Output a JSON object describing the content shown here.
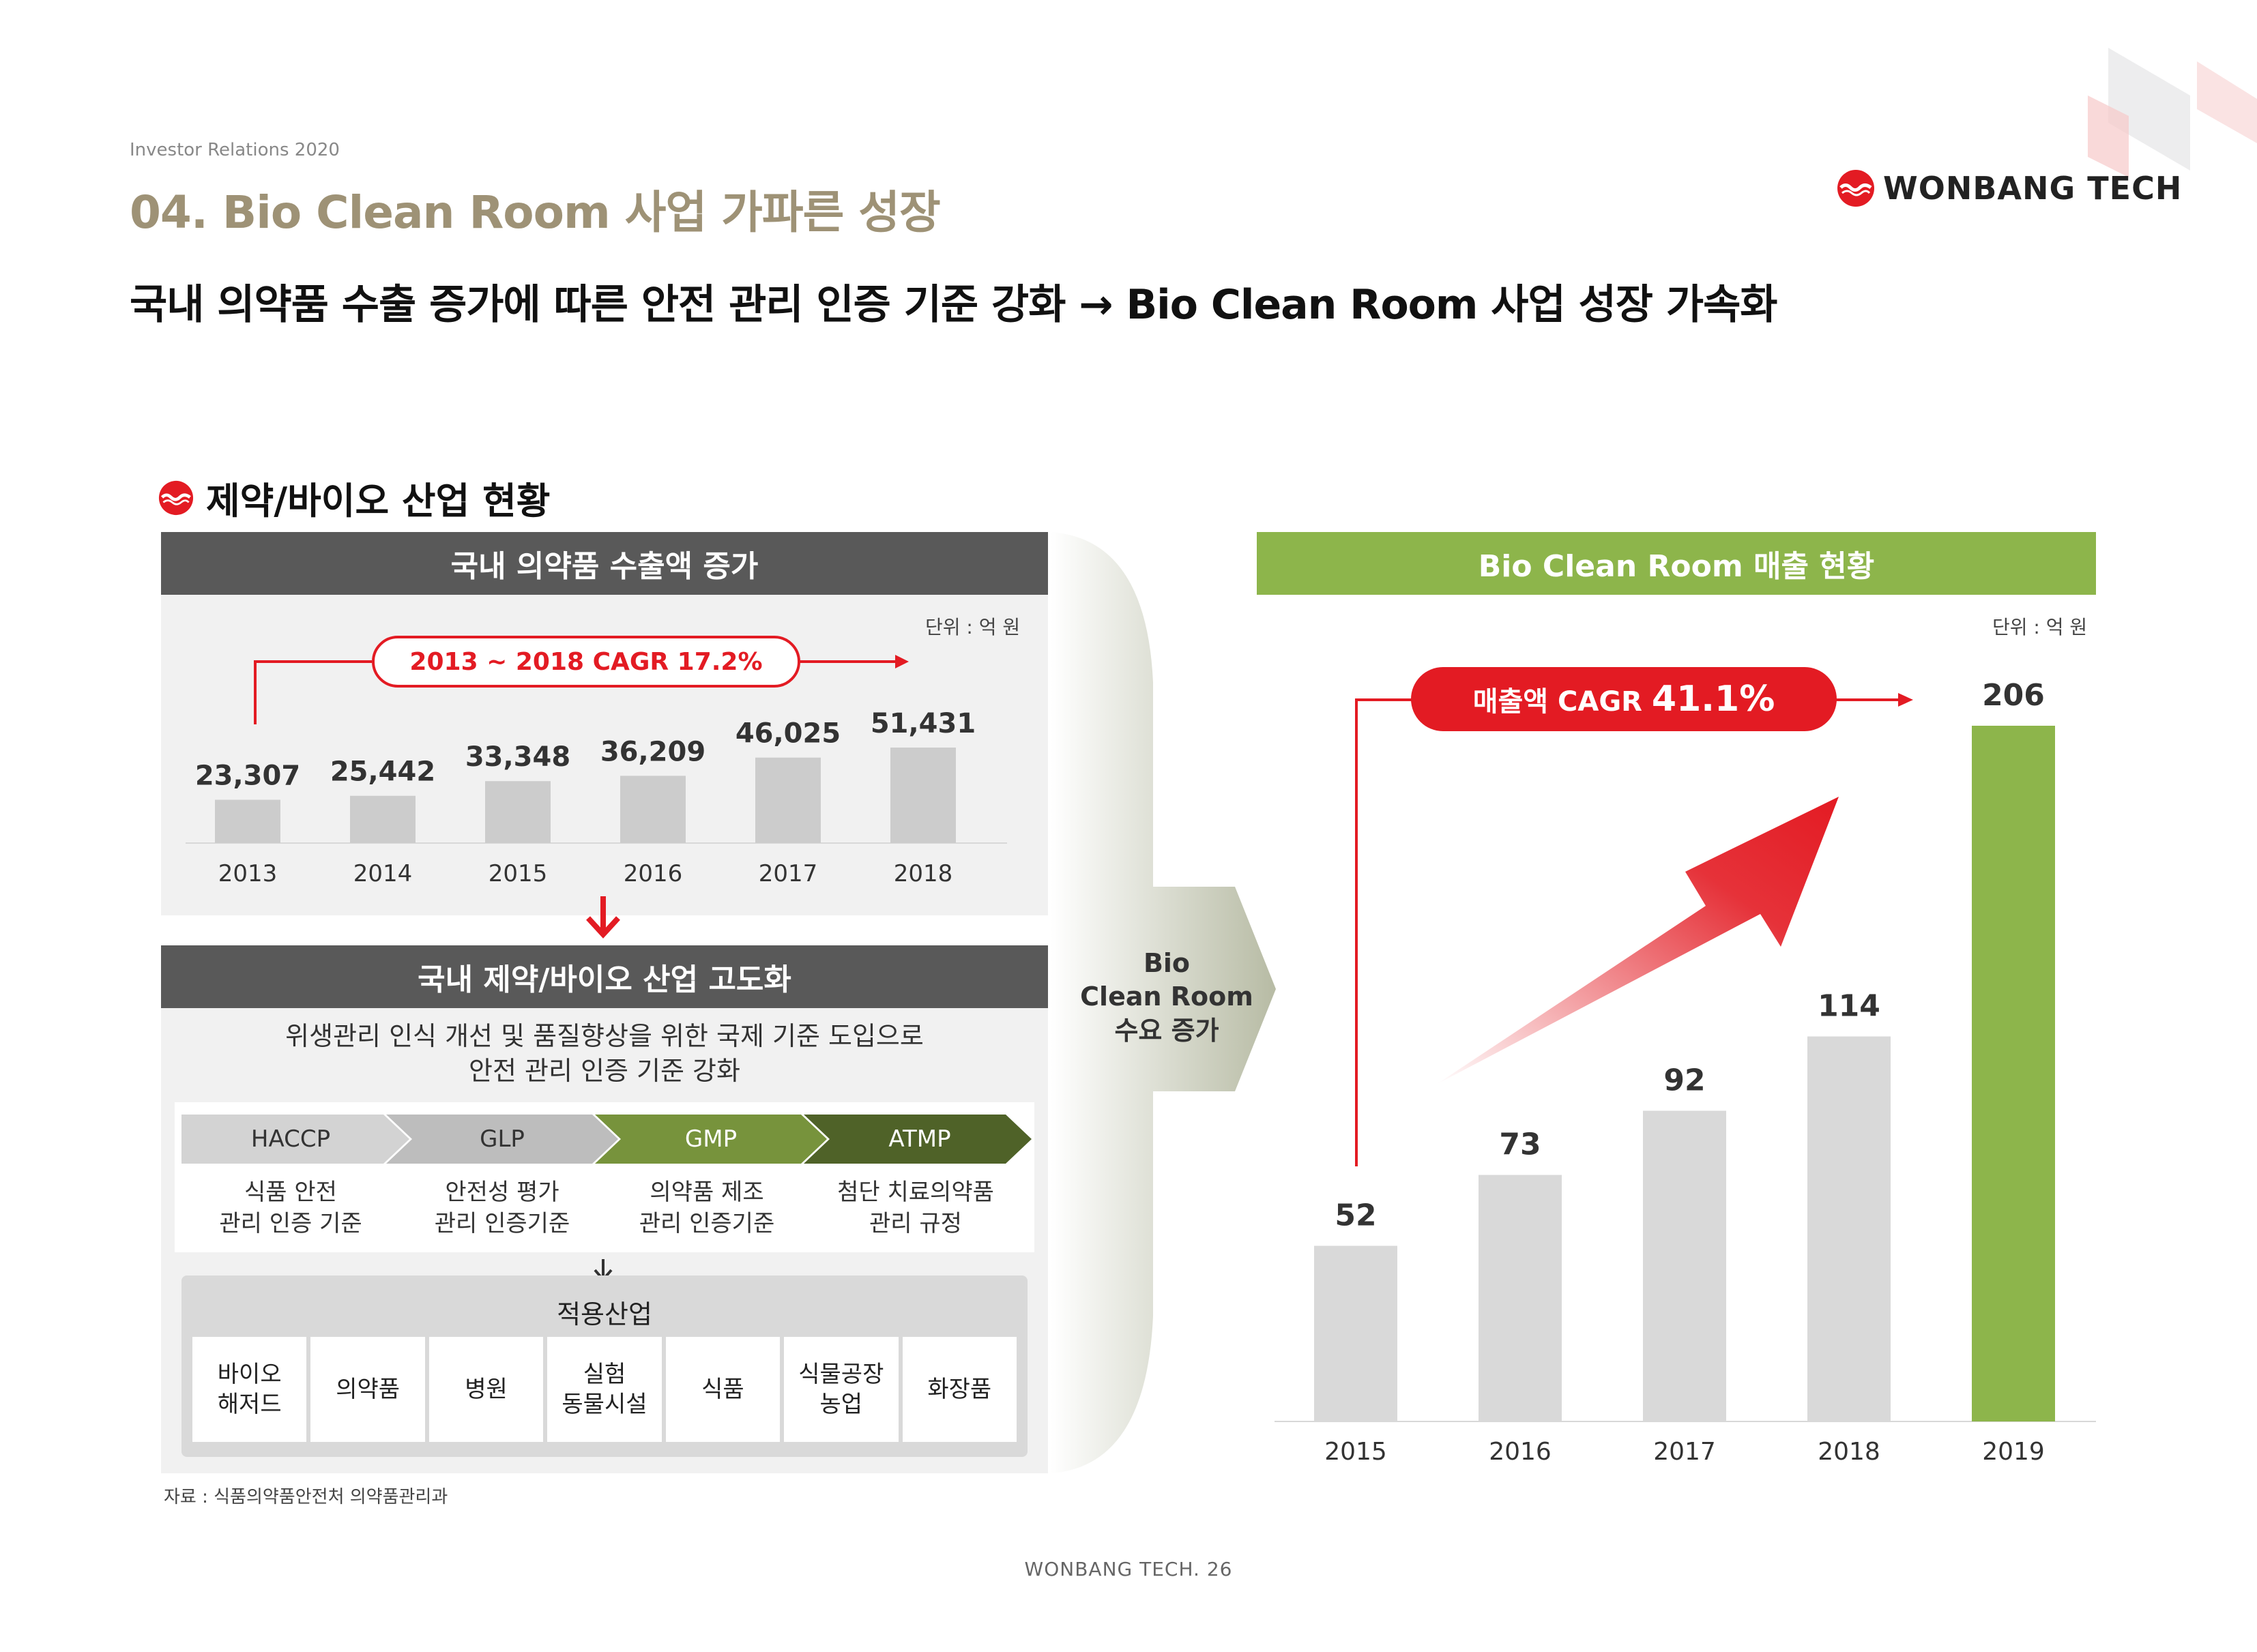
{
  "header": {
    "ir_label": "Investor Relations 2020",
    "title": "04. Bio Clean Room 사업 가파른 성장",
    "headline": "국내 의약품 수출 증가에 따른 안전 관리 인증 기준 강화 → Bio Clean Room 사업 성장 가속화",
    "logo_text": "WONBANG TECH"
  },
  "section_title": "제약/바이오 산업 현황",
  "colors": {
    "dark_header": "#595959",
    "green_header": "#8db54b",
    "red_accent": "#e31b23",
    "bar_gray": "#cccccc",
    "bar_green": "#8db54b",
    "title_beige": "#9e9276"
  },
  "export_panel": {
    "title": "국내 의약품 수출액 증가",
    "unit": "단위 : 억 원",
    "cagr_label": "2013 ~ 2018 CAGR 17.2%"
  },
  "chart_data": [
    {
      "type": "bar",
      "title": "국내 의약품 수출액 증가",
      "categories": [
        "2013",
        "2014",
        "2015",
        "2016",
        "2017",
        "2018"
      ],
      "values": [
        23307,
        25442,
        33348,
        36209,
        46025,
        51431
      ],
      "value_labels": [
        "23,307",
        "25,442",
        "33,348",
        "36,209",
        "46,025",
        "51,431"
      ],
      "unit": "단위 : 억 원",
      "annotation": "2013 ~ 2018 CAGR 17.2%",
      "grid": false
    },
    {
      "type": "bar",
      "title": "Bio Clean Room 매출 현황",
      "categories": [
        "2015",
        "2016",
        "2017",
        "2018",
        "2019"
      ],
      "values": [
        52,
        73,
        92,
        114,
        206
      ],
      "unit": "단위 : 억 원",
      "annotation": "매출액 CAGR 41.1%",
      "grid": false
    }
  ],
  "upgrade_panel": {
    "title": "국내 제약/바이오 산업 고도화",
    "description_line1": "위생관리 인식 개선 및 품질향상을 위한 국제 기준 도입으로",
    "description_line2": "안전 관리 인증 기준 강화",
    "standards": [
      {
        "code": "HACCP",
        "desc1": "식품 안전",
        "desc2": "관리 인증 기준"
      },
      {
        "code": "GLP",
        "desc1": "안전성 평가",
        "desc2": "관리 인증기준"
      },
      {
        "code": "GMP",
        "desc1": "의약품 제조",
        "desc2": "관리 인증기준"
      },
      {
        "code": "ATMP",
        "desc1": "첨단 치료의약품",
        "desc2": "관리 규정"
      }
    ],
    "industry_title": "적용산업",
    "industries": [
      {
        "line1": "바이오",
        "line2": "해저드"
      },
      {
        "line1": "의약품",
        "line2": ""
      },
      {
        "line1": "병원",
        "line2": ""
      },
      {
        "line1": "실험",
        "line2": "동물시설"
      },
      {
        "line1": "식품",
        "line2": ""
      },
      {
        "line1": "식물공장",
        "line2": "농업"
      },
      {
        "line1": "화장품",
        "line2": ""
      }
    ]
  },
  "demand_arrow": {
    "line1": "Bio",
    "line2": "Clean Room",
    "line3": "수요 증가"
  },
  "sales_panel": {
    "title": "Bio Clean Room 매출 현황",
    "unit": "단위 : 억 원",
    "cagr_prefix": "매출액 CAGR ",
    "cagr_value": "41.1%"
  },
  "source": "자료 : 식품의약품안전처 의약품관리과",
  "footer": "WONBANG TECH. 26"
}
